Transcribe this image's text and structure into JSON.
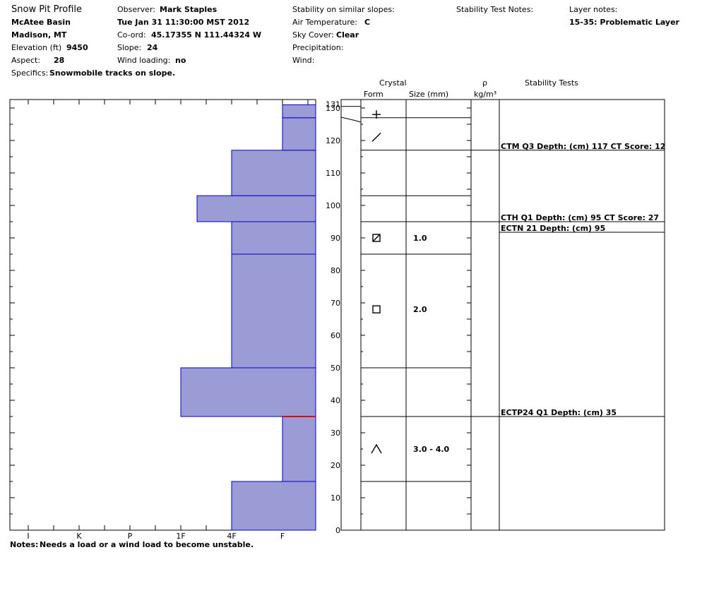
{
  "header": {
    "title": "Snow Pit Profile",
    "location": "McAtee Basin",
    "region": "Madison, MT",
    "elevation_label": "Elevation (ft)",
    "elevation_value": "9450",
    "aspect_label": "Aspect:",
    "aspect_value": "28",
    "specifics_label": "Specifics:",
    "specifics_value": "Snowmobile tracks on slope.",
    "observer_label": "Observer:",
    "observer_value": "Mark Staples",
    "datetime": "Tue Jan 31 11:30:00 MST 2012",
    "coord_label": "Co-ord:",
    "coord_value": "45.17355 N 111.44324 W",
    "slope_label": "Slope:",
    "slope_value": "24",
    "wind_loading_label": "Wind loading:",
    "wind_loading_value": "no",
    "stability_similar_label": "Stability on similar slopes:",
    "air_temp_label": "Air Temperature:",
    "air_temp_value": "C",
    "sky_cover_label": "Sky Cover:",
    "sky_cover_value": "Clear",
    "precipitation_label": "Precipitation:",
    "wind_label": "Wind:",
    "stability_notes_label": "Stability Test Notes:",
    "layer_notes_label": "Layer notes:",
    "layer_notes_value": "15-35: Problematic Layer"
  },
  "notes": {
    "label": "Notes:",
    "value": "Needs a load or a wind load to become unstable."
  },
  "columns": {
    "crystal": "Crystal",
    "form": "Form",
    "size": "Size (mm)",
    "rho": "ρ",
    "density_unit": "kg/m³",
    "stability_tests": "Stability Tests"
  },
  "chart_data": {
    "type": "bar",
    "orientation": "horizontal",
    "description_of_axes": "x = hand hardness, y = snow height (cm)",
    "x_ticks": [
      "I",
      "K",
      "P",
      "1F",
      "4F",
      "F"
    ],
    "y_ticks": [
      0,
      10,
      20,
      30,
      40,
      50,
      60,
      70,
      80,
      90,
      100,
      110,
      120,
      130
    ],
    "y_top_label": "131",
    "ylim": [
      0,
      133
    ],
    "total_depth": 131,
    "layers": [
      {
        "bottom": 0,
        "top": 15,
        "hardness": "4F"
      },
      {
        "bottom": 15,
        "top": 35,
        "hardness": "F"
      },
      {
        "bottom": 35,
        "top": 50,
        "hardness": "1F+"
      },
      {
        "bottom": 50,
        "top": 85,
        "hardness": "4F"
      },
      {
        "bottom": 85,
        "top": 95,
        "hardness": "4F"
      },
      {
        "bottom": 95,
        "top": 103,
        "hardness": "1F-"
      },
      {
        "bottom": 103,
        "top": 117,
        "hardness": "4F"
      },
      {
        "bottom": 117,
        "top": 127,
        "hardness": "F"
      },
      {
        "bottom": 127,
        "top": 131,
        "hardness": "F"
      }
    ],
    "problem_layer_height": 35,
    "bar_color": "#9b9bd6",
    "edge_color": "#0000cc",
    "problem_color": "#dd0000",
    "crystals": [
      {
        "height": 128,
        "form": "new-snow-plus-icon",
        "size": ""
      },
      {
        "height": 121,
        "form": "decomposing-slash-icon",
        "size": ""
      },
      {
        "height": 90,
        "form": "mixed-faceted-icon",
        "size": "1.0"
      },
      {
        "height": 68,
        "form": "faceted-square-icon",
        "size": "2.0"
      },
      {
        "height": 25,
        "form": "depth-hoar-caret-icon",
        "size": "3.0 - 4.0"
      }
    ],
    "stability_tests": [
      {
        "height": 117,
        "text": "CTM Q3 Depth: (cm) 117 CT Score: 12"
      },
      {
        "height": 95,
        "text": "CTH Q1 Depth: (cm) 95 CT Score: 27"
      },
      {
        "height": 92,
        "text": "ECTN 21   Depth: (cm) 95"
      },
      {
        "height": 35,
        "text": "ECTP24 Q1 Depth: (cm) 35"
      }
    ]
  }
}
